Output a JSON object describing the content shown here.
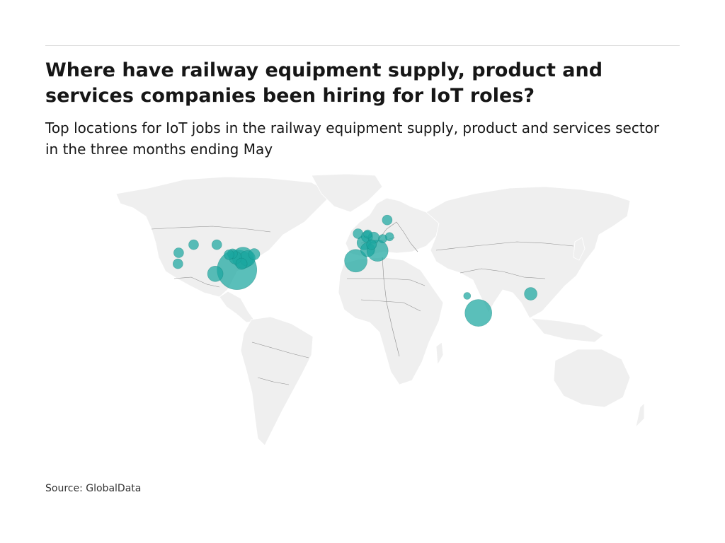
{
  "title": "Where have railway equipment supply, product and services companies been hiring for IoT roles?",
  "subtitle": "Top locations for IoT jobs in the railway equipment supply, product and services sector in the three months ending May",
  "source": "Source: GlobalData",
  "colors": {
    "land": "#efefef",
    "border": "#8f8f8f",
    "bubble": "#1aa6a0",
    "bubble_stroke": "#0f7f7a"
  },
  "map": {
    "projection": "equirectangular",
    "bubble_fill_opacity": 0.72,
    "locations": [
      {
        "name": "US Southeast",
        "lon": -82.5,
        "lat": 34.5,
        "size": 28
      },
      {
        "name": "US Texas",
        "lon": -97.0,
        "lat": 32.5,
        "size": 11
      },
      {
        "name": "US Northeast A",
        "lon": -78.5,
        "lat": 40.5,
        "size": 15
      },
      {
        "name": "US Northeast B",
        "lon": -75.5,
        "lat": 40.2,
        "size": 11
      },
      {
        "name": "US Ohio",
        "lon": -83.5,
        "lat": 40.5,
        "size": 9
      },
      {
        "name": "US Michigan",
        "lon": -85.5,
        "lat": 42.5,
        "size": 7
      },
      {
        "name": "US Boston",
        "lon": -71.0,
        "lat": 42.3,
        "size": 8
      },
      {
        "name": "US Chicago",
        "lon": -87.8,
        "lat": 42.0,
        "size": 7
      },
      {
        "name": "US Virginia",
        "lon": -79.5,
        "lat": 37.5,
        "size": 8
      },
      {
        "name": "US Montana",
        "lon": -111.5,
        "lat": 47.0,
        "size": 7
      },
      {
        "name": "US Minnesota",
        "lon": -96.0,
        "lat": 47.0,
        "size": 7
      },
      {
        "name": "US Oregon",
        "lon": -121.5,
        "lat": 43.0,
        "size": 7
      },
      {
        "name": "US California",
        "lon": -122.0,
        "lat": 37.5,
        "size": 7
      },
      {
        "name": "Spain",
        "lon": -3.0,
        "lat": 39.0,
        "size": 16
      },
      {
        "name": "France North",
        "lon": 2.5,
        "lat": 48.0,
        "size": 10
      },
      {
        "name": "France South",
        "lon": 5.0,
        "lat": 44.5,
        "size": 10
      },
      {
        "name": "Italy",
        "lon": 11.5,
        "lat": 44.0,
        "size": 15
      },
      {
        "name": "UK",
        "lon": -1.5,
        "lat": 52.5,
        "size": 7
      },
      {
        "name": "Belgium",
        "lon": 4.5,
        "lat": 51.0,
        "size": 8
      },
      {
        "name": "Germany",
        "lon": 9.0,
        "lat": 50.5,
        "size": 8
      },
      {
        "name": "Switzerland",
        "lon": 7.5,
        "lat": 47.0,
        "size": 7
      },
      {
        "name": "Poland",
        "lon": 19.5,
        "lat": 51.0,
        "size": 6
      },
      {
        "name": "Czechia",
        "lon": 15.0,
        "lat": 50.0,
        "size": 6
      },
      {
        "name": "Sweden",
        "lon": 18.0,
        "lat": 59.3,
        "size": 7
      },
      {
        "name": "Netherlands",
        "lon": 5.0,
        "lat": 52.3,
        "size": 6
      },
      {
        "name": "India West",
        "lon": 71.5,
        "lat": 21.5,
        "size": 5
      },
      {
        "name": "India South",
        "lon": 79.0,
        "lat": 13.0,
        "size": 19
      },
      {
        "name": "Hong Kong",
        "lon": 114.0,
        "lat": 22.5,
        "size": 9
      }
    ]
  }
}
